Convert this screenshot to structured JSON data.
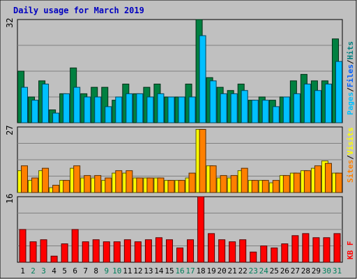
{
  "title": "Daily usage for March 2019",
  "colors": {
    "background": "#c0c0c0",
    "title": "#0000c0",
    "hits": "#008040",
    "files": "#00c0ff",
    "sites": "#ff8000",
    "visits": "#ffff00",
    "kbytes": "#ff0000",
    "weekend_label": "#00805c",
    "weekday_label": "#000000"
  },
  "panels": {
    "top": {
      "max_label": "32",
      "legend": {
        "pages": "Pages",
        "files": "Files",
        "hits": "Hits",
        "sep": "/"
      }
    },
    "mid": {
      "max_label": "27",
      "legend": {
        "sites": "Sites",
        "visits": "Visits",
        "sep": "/"
      }
    },
    "bot": {
      "max_label": "16",
      "legend": {
        "kbytes": "KB F"
      }
    }
  },
  "chart_data": [
    {
      "type": "bar",
      "panel": "top",
      "x": [
        1,
        2,
        3,
        4,
        5,
        6,
        7,
        8,
        9,
        10,
        11,
        12,
        13,
        14,
        15,
        16,
        17,
        18,
        19,
        20,
        21,
        22,
        23,
        24,
        25,
        26,
        27,
        28,
        29,
        30,
        31
      ],
      "weekend_days": [
        2,
        3,
        9,
        10,
        16,
        17,
        23,
        24,
        30,
        31
      ],
      "ylim": [
        0,
        32
      ],
      "series": [
        {
          "name": "Hits",
          "values": [
            16,
            8,
            13,
            4,
            9,
            17,
            9,
            11,
            11,
            7,
            12,
            9,
            11,
            12,
            8,
            8,
            12,
            32,
            14,
            11,
            10,
            12,
            7,
            8,
            7,
            8,
            13,
            15,
            13,
            13,
            26
          ]
        },
        {
          "name": "Files",
          "values": [
            11,
            7,
            12,
            3,
            9,
            11,
            8,
            8,
            5,
            8,
            9,
            9,
            8,
            9,
            8,
            8,
            8,
            27,
            13,
            9,
            9,
            10,
            7,
            7,
            5,
            8,
            9,
            12,
            10,
            12,
            19
          ]
        }
      ]
    },
    {
      "type": "bar",
      "panel": "mid",
      "x": [
        1,
        2,
        3,
        4,
        5,
        6,
        7,
        8,
        9,
        10,
        11,
        12,
        13,
        14,
        15,
        16,
        17,
        18,
        19,
        20,
        21,
        22,
        23,
        24,
        25,
        26,
        27,
        28,
        29,
        30,
        31
      ],
      "ylim": [
        0,
        27
      ],
      "series": [
        {
          "name": "Visits",
          "values": [
            9,
            5,
            9,
            2,
            5,
            10,
            6,
            6,
            5,
            8,
            8,
            6,
            6,
            6,
            5,
            5,
            6,
            26,
            11,
            6,
            6,
            9,
            5,
            5,
            4,
            7,
            8,
            9,
            10,
            13,
            8
          ]
        },
        {
          "name": "Sites",
          "values": [
            11,
            6,
            10,
            3,
            5,
            11,
            7,
            7,
            6,
            9,
            9,
            6,
            6,
            6,
            5,
            5,
            8,
            26,
            11,
            7,
            7,
            10,
            5,
            5,
            5,
            7,
            8,
            9,
            11,
            12,
            8
          ]
        }
      ]
    },
    {
      "type": "bar",
      "panel": "bot",
      "x": [
        1,
        2,
        3,
        4,
        5,
        6,
        7,
        8,
        9,
        10,
        11,
        12,
        13,
        14,
        15,
        16,
        17,
        18,
        19,
        20,
        21,
        22,
        23,
        24,
        25,
        26,
        27,
        28,
        29,
        30,
        31
      ],
      "ylim": [
        0,
        16
      ],
      "series": [
        {
          "name": "KB F",
          "values": [
            8,
            5,
            5.5,
            1.5,
            4.5,
            8,
            5,
            5.5,
            5,
            5,
            5.5,
            5,
            5.5,
            6,
            5.5,
            3.5,
            5.5,
            16,
            7,
            5.5,
            5,
            5.5,
            2.5,
            4,
            3.5,
            4.5,
            6.5,
            7,
            6,
            6,
            7
          ]
        }
      ]
    }
  ]
}
